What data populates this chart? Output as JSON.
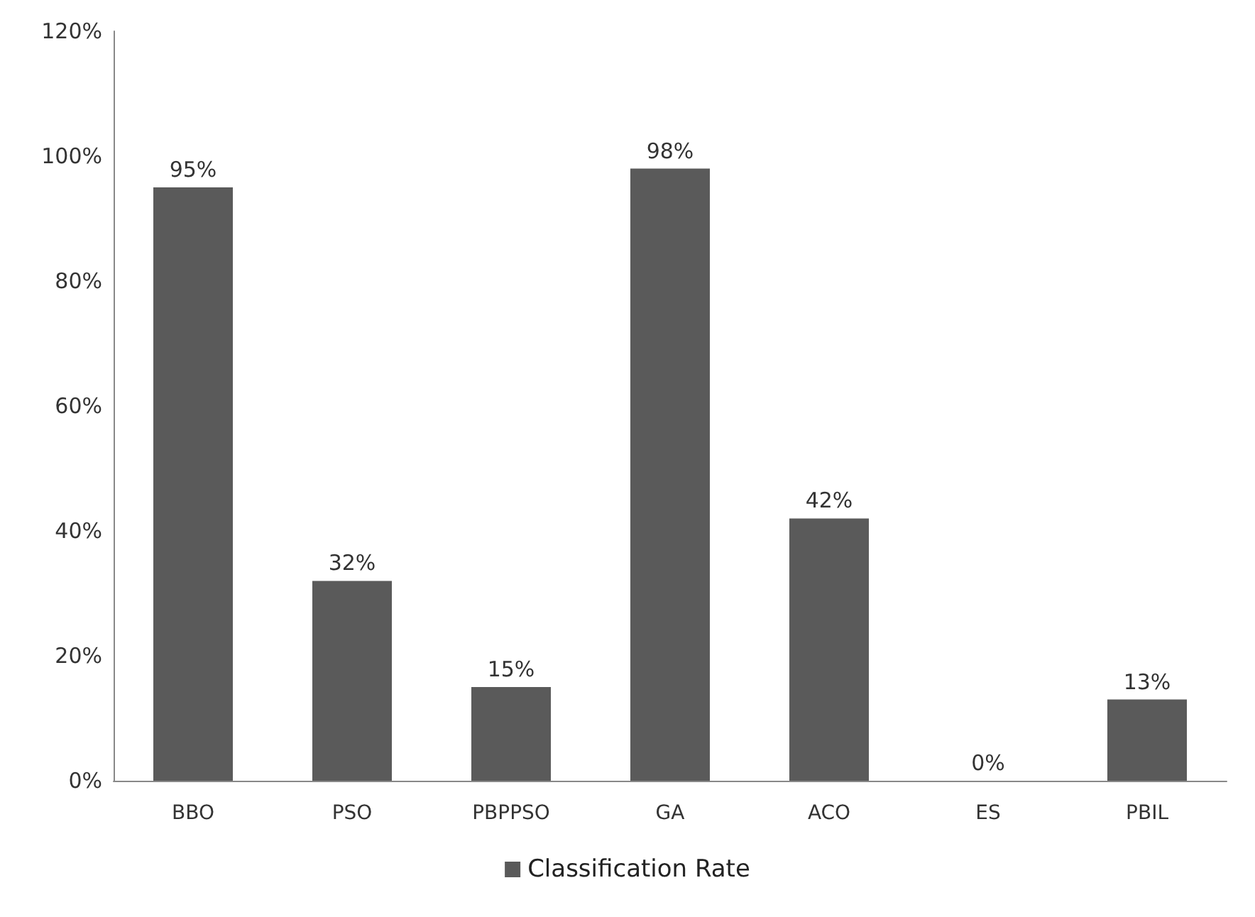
{
  "chart_data": {
    "type": "bar",
    "categories": [
      "BBO",
      "PSO",
      "PBPPSO",
      "GA",
      "ACO",
      "ES",
      "PBIL"
    ],
    "series": [
      {
        "name": "Classification Rate",
        "color": "#5a5a5a",
        "values": [
          95,
          32,
          15,
          98,
          42,
          0,
          13
        ],
        "value_labels": [
          "95%",
          "32%",
          "15%",
          "98%",
          "42%",
          "0%",
          "13%"
        ]
      }
    ],
    "ylim": [
      0,
      120
    ],
    "yticks": [
      {
        "value": 0,
        "label": "0%"
      },
      {
        "value": 20,
        "label": "20%"
      },
      {
        "value": 40,
        "label": "40%"
      },
      {
        "value": 60,
        "label": "60%"
      },
      {
        "value": 80,
        "label": "80%"
      },
      {
        "value": 100,
        "label": "100%"
      },
      {
        "value": 120,
        "label": "120%"
      }
    ],
    "grid": false,
    "legend": "bottom"
  }
}
